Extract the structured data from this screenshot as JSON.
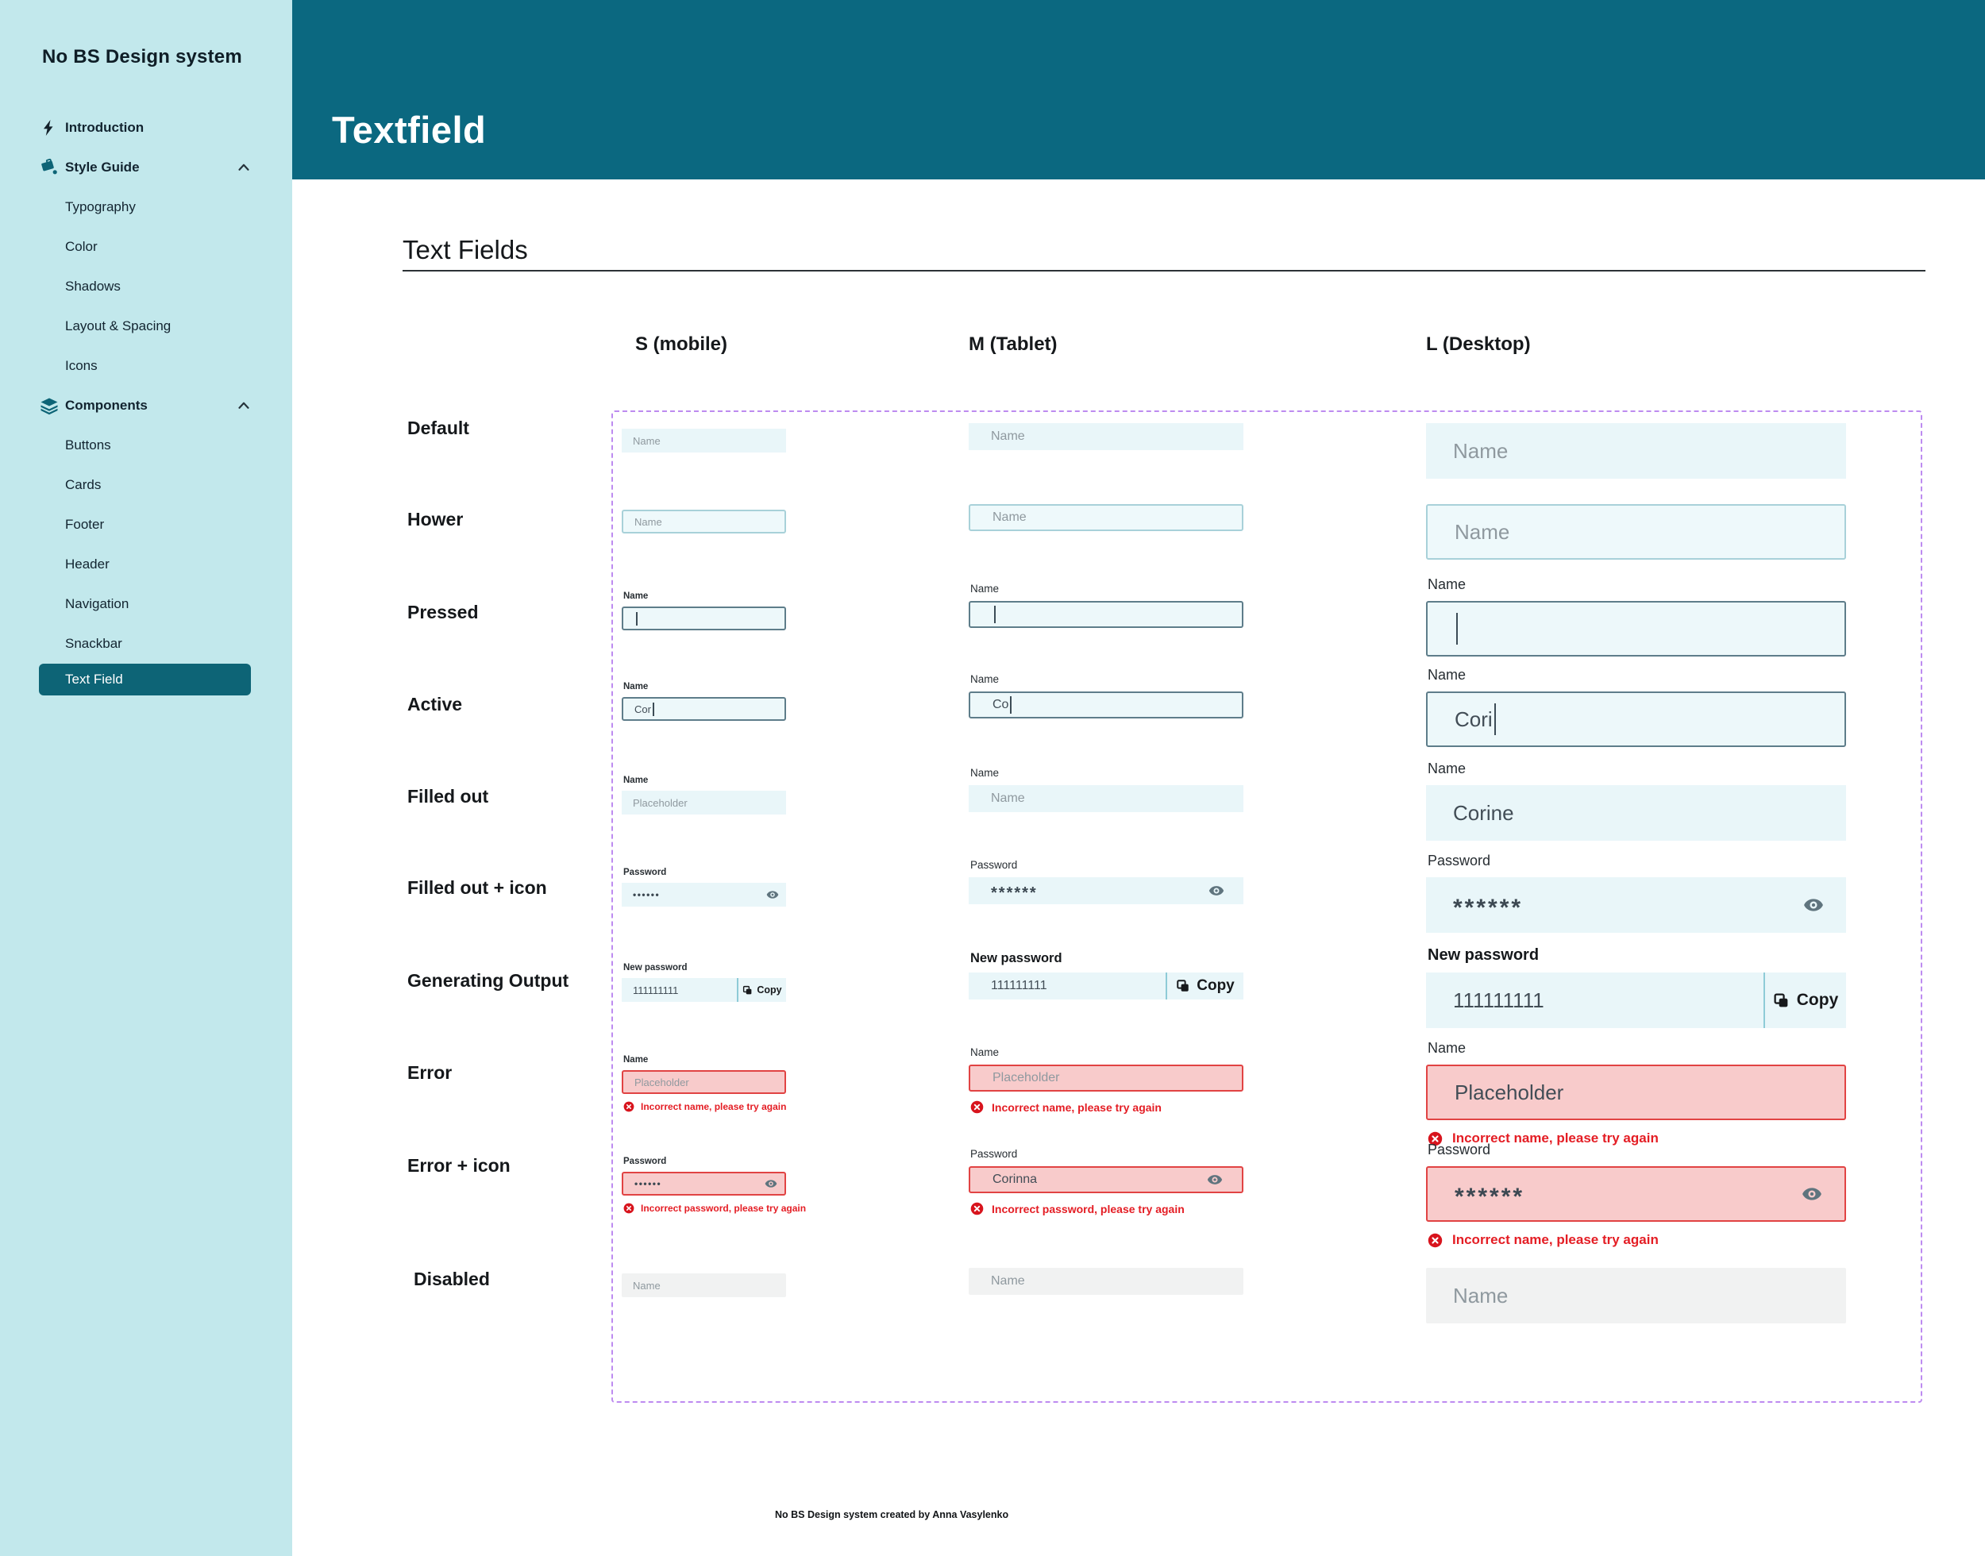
{
  "sidebar": {
    "title": "No BS Design system",
    "items": [
      {
        "label": "Introduction",
        "icon": "bolt-icon",
        "level": 0
      },
      {
        "label": "Style Guide",
        "icon": "paint-bucket-icon",
        "level": 0,
        "chevron": true
      },
      {
        "label": "Typography",
        "level": 1
      },
      {
        "label": "Color",
        "level": 1
      },
      {
        "label": "Shadows",
        "level": 1
      },
      {
        "label": "Layout & Spacing",
        "level": 1
      },
      {
        "label": "Icons",
        "level": 1
      },
      {
        "label": "Components",
        "icon": "layers-icon",
        "level": 0,
        "chevron": true
      },
      {
        "label": "Buttons",
        "level": 1
      },
      {
        "label": "Cards",
        "level": 1
      },
      {
        "label": "Footer",
        "level": 1
      },
      {
        "label": "Header",
        "level": 1
      },
      {
        "label": "Navigation",
        "level": 1
      },
      {
        "label": "Snackbar",
        "level": 1
      },
      {
        "label": "Text Field",
        "level": 1,
        "active": true
      }
    ]
  },
  "banner": {
    "title": "Textfield"
  },
  "section": {
    "title": "Text Fields"
  },
  "columns": [
    "S (mobile)",
    "M (Tablet)",
    "L (Desktop)"
  ],
  "rows": [
    {
      "name": "default",
      "label": "Default",
      "cells": [
        {
          "variant": "plain",
          "text": "Name",
          "muted": true
        },
        {
          "variant": "plain",
          "text": "Name",
          "muted": true
        },
        {
          "variant": "plain",
          "text": "Name",
          "muted": true
        }
      ]
    },
    {
      "name": "hower",
      "label": "Hower",
      "cells": [
        {
          "variant": "hover",
          "text": "Name",
          "muted": true
        },
        {
          "variant": "hover",
          "text": "Name",
          "muted": true
        },
        {
          "variant": "hover",
          "text": "Name",
          "muted": true
        }
      ]
    },
    {
      "name": "pressed",
      "label": "Pressed",
      "cells": [
        {
          "variant": "pressed",
          "field_label": "Name",
          "cursor": "start"
        },
        {
          "variant": "pressed",
          "field_label": "Name",
          "cursor": "start"
        },
        {
          "variant": "pressed",
          "field_label": "Name",
          "cursor": "start"
        }
      ]
    },
    {
      "name": "active",
      "label": "Active",
      "cells": [
        {
          "variant": "active",
          "field_label": "Name",
          "text": "Cor",
          "cursor": "end"
        },
        {
          "variant": "active",
          "field_label": "Name",
          "text": "Co",
          "cursor": "end"
        },
        {
          "variant": "active",
          "field_label": "Name",
          "text": "Cori",
          "cursor": "end"
        }
      ]
    },
    {
      "name": "filled-out",
      "label": "Filled out",
      "cells": [
        {
          "variant": "plain",
          "field_label": "Name",
          "text": "Placeholder",
          "muted": true
        },
        {
          "variant": "plain",
          "field_label": "Name",
          "text": "Name",
          "muted": true
        },
        {
          "variant": "plain",
          "field_label": "Name",
          "text": "Corine"
        }
      ]
    },
    {
      "name": "filled-out-icon",
      "label": "Filled out + icon",
      "cells": [
        {
          "variant": "plain",
          "field_label": "Password",
          "text": "••••••",
          "password": true,
          "icon": "eye-icon"
        },
        {
          "variant": "plain",
          "field_label": "Password",
          "text": "******",
          "password": true,
          "icon": "eye-icon"
        },
        {
          "variant": "plain",
          "field_label": "Password",
          "text": "******",
          "password": true,
          "icon": "eye-icon"
        }
      ]
    },
    {
      "name": "generating-output",
      "label": "Generating Output",
      "cells": [
        {
          "variant": "gen",
          "field_label": "New password",
          "text": "111111111",
          "copy_label": "Copy"
        },
        {
          "variant": "gen",
          "field_label": "New password",
          "label_bold": true,
          "text": "111111111",
          "copy_label": "Copy"
        },
        {
          "variant": "gen",
          "field_label": "New password",
          "label_bold": true,
          "text": "111111111",
          "copy_label": "Copy"
        }
      ]
    },
    {
      "name": "error",
      "label": "Error",
      "cells": [
        {
          "variant": "error",
          "field_label": "Name",
          "text": "Placeholder",
          "muted": true,
          "error": "Incorrect name, please try again"
        },
        {
          "variant": "error",
          "field_label": "Name",
          "text": "Placeholder",
          "muted": true,
          "error": "Incorrect name, please try again"
        },
        {
          "variant": "error",
          "field_label": "Name",
          "text": "Placeholder",
          "error": "Incorrect name, please try again"
        }
      ]
    },
    {
      "name": "error-icon",
      "label": "Error + icon",
      "cells": [
        {
          "variant": "error",
          "field_label": "Password",
          "text": "••••••",
          "password": true,
          "icon": "eye-icon",
          "error": "Incorrect password, please try again"
        },
        {
          "variant": "error",
          "field_label": "Password",
          "text": "Corinna",
          "icon": "eye-icon",
          "error": "Incorrect password, please try again"
        },
        {
          "variant": "error",
          "field_label": "Password",
          "text": "******",
          "password": true,
          "icon": "eye-icon",
          "error": "Incorrect name, please try again"
        }
      ]
    },
    {
      "name": "disabled",
      "label": "Disabled",
      "cells": [
        {
          "variant": "disabled",
          "text": "Name",
          "muted": true
        },
        {
          "variant": "disabled",
          "text": "Name",
          "muted": true
        },
        {
          "variant": "disabled",
          "text": "Name",
          "muted": true
        }
      ]
    }
  ],
  "footer": {
    "credit": "No BS Design system created by Anna Vasylenko"
  },
  "colors": {
    "brand_teal": "#0b6880",
    "active_item_teal": "#0d6476",
    "sidebar_bg": "#c2e8ec",
    "field_bg": "#e9f6f9",
    "focus_border": "#5e7d8a",
    "error_red": "#e14343",
    "error_bg": "#f8cbcb",
    "disabled_bg": "#f1f2f2",
    "frame_purple": "#bd8bf0"
  }
}
